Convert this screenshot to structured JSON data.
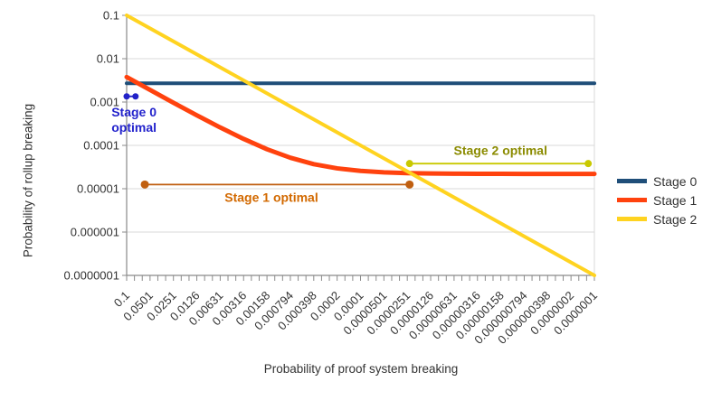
{
  "chart_data": {
    "type": "line",
    "title": "",
    "x_axis": {
      "label": "Probability of proof system breaking",
      "scale": "log",
      "range": [
        1e-07,
        0.1
      ],
      "tick_labels": [
        "0.1",
        "0.0501",
        "0.0251",
        "0.0126",
        "0.00631",
        "0.00316",
        "0.00158",
        "0.000794",
        "0.000398",
        "0.0002",
        "0.0001",
        "0.0000501",
        "0.0000251",
        "0.0000126",
        "0.00000631",
        "0.00000316",
        "0.00000158",
        "0.000000794",
        "0.000000398",
        "0.0000002",
        "0.0000001"
      ],
      "tick_values": [
        0.1,
        0.0501,
        0.0251,
        0.0126,
        0.00631,
        0.00316,
        0.00158,
        0.000794,
        0.000398,
        0.0002,
        0.0001,
        5.01e-05,
        2.51e-05,
        1.26e-05,
        6.31e-06,
        3.16e-06,
        1.58e-06,
        7.94e-07,
        3.98e-07,
        2e-07,
        1e-07
      ]
    },
    "y_axis": {
      "label": "Probability of rollup breaking",
      "scale": "log",
      "range": [
        1e-07,
        0.1
      ],
      "tick_labels": [
        "0.1",
        "0.01",
        "0.001",
        "0.0001",
        "0.00001",
        "0.000001",
        "0.0000001"
      ],
      "tick_values": [
        0.1,
        0.01,
        0.001,
        0.0001,
        1e-05,
        1e-06,
        1e-07
      ]
    },
    "grid": {
      "horizontal": true,
      "vertical": false,
      "color": "#D9D9D9"
    },
    "legend_position": "right",
    "series": [
      {
        "name": "Stage 0",
        "color": "#1F4E79",
        "width": 4,
        "x": [
          0.1,
          1e-07
        ],
        "y": [
          0.0027,
          0.0027
        ]
      },
      {
        "name": "Stage 1",
        "color": "#FF420E",
        "width": 5,
        "x": [
          0.1,
          0.0501,
          0.0251,
          0.0126,
          0.00631,
          0.00316,
          0.00158,
          0.000794,
          0.000398,
          0.0002,
          0.0001,
          5.01e-05,
          2.51e-05,
          1.26e-05,
          6.31e-06,
          3.16e-06,
          1.58e-06,
          7.94e-07,
          3.98e-07,
          2e-07,
          1e-07
        ],
        "y": [
          0.00377,
          0.0019,
          0.000963,
          0.000495,
          0.000259,
          0.000141,
          8.13e-05,
          5.18e-05,
          3.69e-05,
          2.95e-05,
          2.58e-05,
          2.39e-05,
          2.29e-05,
          2.25e-05,
          2.22e-05,
          2.21e-05,
          2.21e-05,
          2.2e-05,
          2.2e-05,
          2.2e-05,
          2.2e-05
        ]
      },
      {
        "name": "Stage 2",
        "color": "#FFD320",
        "width": 4,
        "x": [
          0.1,
          1e-07
        ],
        "y": [
          0.1,
          1e-07
        ]
      }
    ],
    "annotations": [
      {
        "label": "Stage 0\noptimal",
        "text_color": "#2222CC",
        "marker_color": "#2121C8",
        "dot_radius": 3.5,
        "y": 0.00135,
        "x_start": 0.1,
        "x_end": 0.077,
        "label_anchor": {
          "x": 0.0805,
          "y": 0.00038
        }
      },
      {
        "label": "Stage 1 optimal",
        "text_color": "#D26900",
        "marker_color": "#C05F10",
        "dot_radius": 4.5,
        "y": 1.25e-05,
        "x_start": 0.0585,
        "x_end": 2.35e-05,
        "label_anchor": {
          "x": 0.00139,
          "y": 6.2e-06
        }
      },
      {
        "label": "Stage 2 optimal",
        "text_color": "#8B8B00",
        "marker_color": "#C9C900",
        "dot_radius": 4,
        "y": 3.8e-05,
        "x_start": 2.35e-05,
        "x_end": 1.2e-07,
        "label_anchor": {
          "x": 1.6e-06,
          "y": 7.5e-05
        }
      }
    ]
  }
}
